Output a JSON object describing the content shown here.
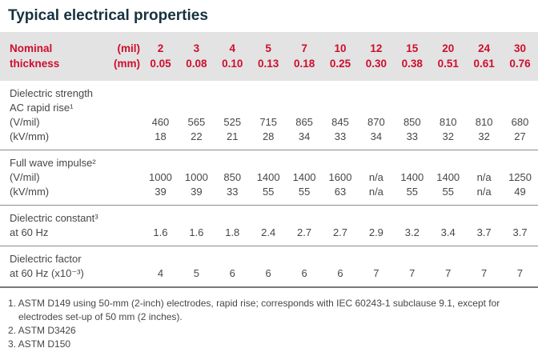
{
  "title": "Typical electrical properties",
  "colors": {
    "accent_red": "#ce0e2d",
    "title_color": "#16323e",
    "band_bg": "#e3e3e3",
    "line_color": "#8d8d8d",
    "line_strong": "#7a7a7a",
    "text_color": "#474747"
  },
  "header": {
    "label_line1": "Nominal",
    "label_line2": "thickness",
    "unit_mil": "(mil)",
    "unit_mm": "(mm)",
    "mil": [
      "2",
      "3",
      "4",
      "5",
      "7",
      "10",
      "12",
      "15",
      "20",
      "24",
      "30"
    ],
    "mm": [
      "0.05",
      "0.08",
      "0.10",
      "0.13",
      "0.18",
      "0.25",
      "0.30",
      "0.38",
      "0.51",
      "0.61",
      "0.76"
    ]
  },
  "blocks": [
    {
      "label_lines": [
        "Dielectric strength",
        "AC rapid rise¹"
      ],
      "rows": [
        {
          "label": "(V/mil)",
          "values": [
            "460",
            "565",
            "525",
            "715",
            "865",
            "845",
            "870",
            "850",
            "810",
            "810",
            "680"
          ]
        },
        {
          "label": "(kV/mm)",
          "values": [
            "18",
            "22",
            "21",
            "28",
            "34",
            "33",
            "34",
            "33",
            "32",
            "32",
            "27"
          ]
        }
      ]
    },
    {
      "label_lines": [
        "Full wave impulse²"
      ],
      "rows": [
        {
          "label": "(V/mil)",
          "values": [
            "1000",
            "1000",
            "850",
            "1400",
            "1400",
            "1600",
            "n/a",
            "1400",
            "1400",
            "n/a",
            "1250"
          ]
        },
        {
          "label": "(kV/mm)",
          "values": [
            "39",
            "39",
            "33",
            "55",
            "55",
            "63",
            "n/a",
            "55",
            "55",
            "n/a",
            "49"
          ]
        }
      ]
    },
    {
      "label_lines": [
        "Dielectric constant³"
      ],
      "rows": [
        {
          "label": "at 60 Hz",
          "values": [
            "1.6",
            "1.6",
            "1.8",
            "2.4",
            "2.7",
            "2.7",
            "2.9",
            "3.2",
            "3.4",
            "3.7",
            "3.7"
          ]
        }
      ]
    },
    {
      "label_lines": [
        "Dielectric factor"
      ],
      "rows": [
        {
          "label": "at 60 Hz (x10⁻³)",
          "values": [
            "4",
            "5",
            "6",
            "6",
            "6",
            "6",
            "7",
            "7",
            "7",
            "7",
            "7"
          ]
        }
      ]
    }
  ],
  "footnotes": [
    "1. ASTM D149 using 50-mm (2-inch) electrodes, rapid rise; corresponds with IEC 60243-1 subclause 9.1, except for electrodes set-up of 50 mm (2 inches).",
    "2. ASTM D3426",
    "3. ASTM D150"
  ]
}
